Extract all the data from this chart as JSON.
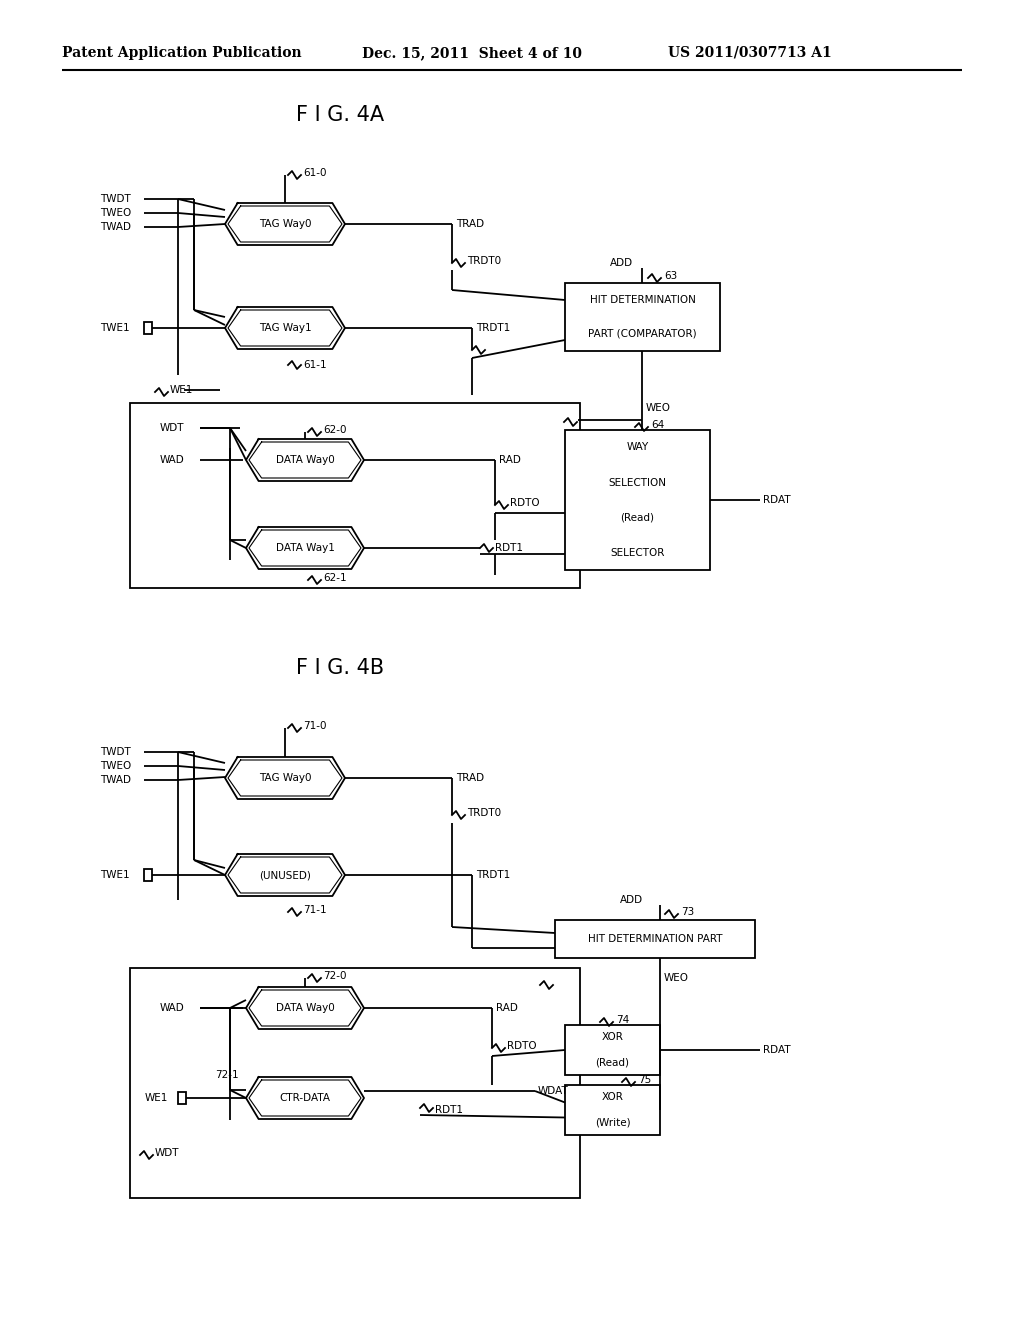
{
  "header_left": "Patent Application Publication",
  "header_mid": "Dec. 15, 2011  Sheet 4 of 10",
  "header_right": "US 2011/0307713 A1",
  "fig4a_title": "F I G. 4A",
  "fig4b_title": "F I G. 4B",
  "bg_color": "#ffffff",
  "lw": 1.3,
  "fs": 7.5,
  "fs_title": 15,
  "fs_header": 10
}
